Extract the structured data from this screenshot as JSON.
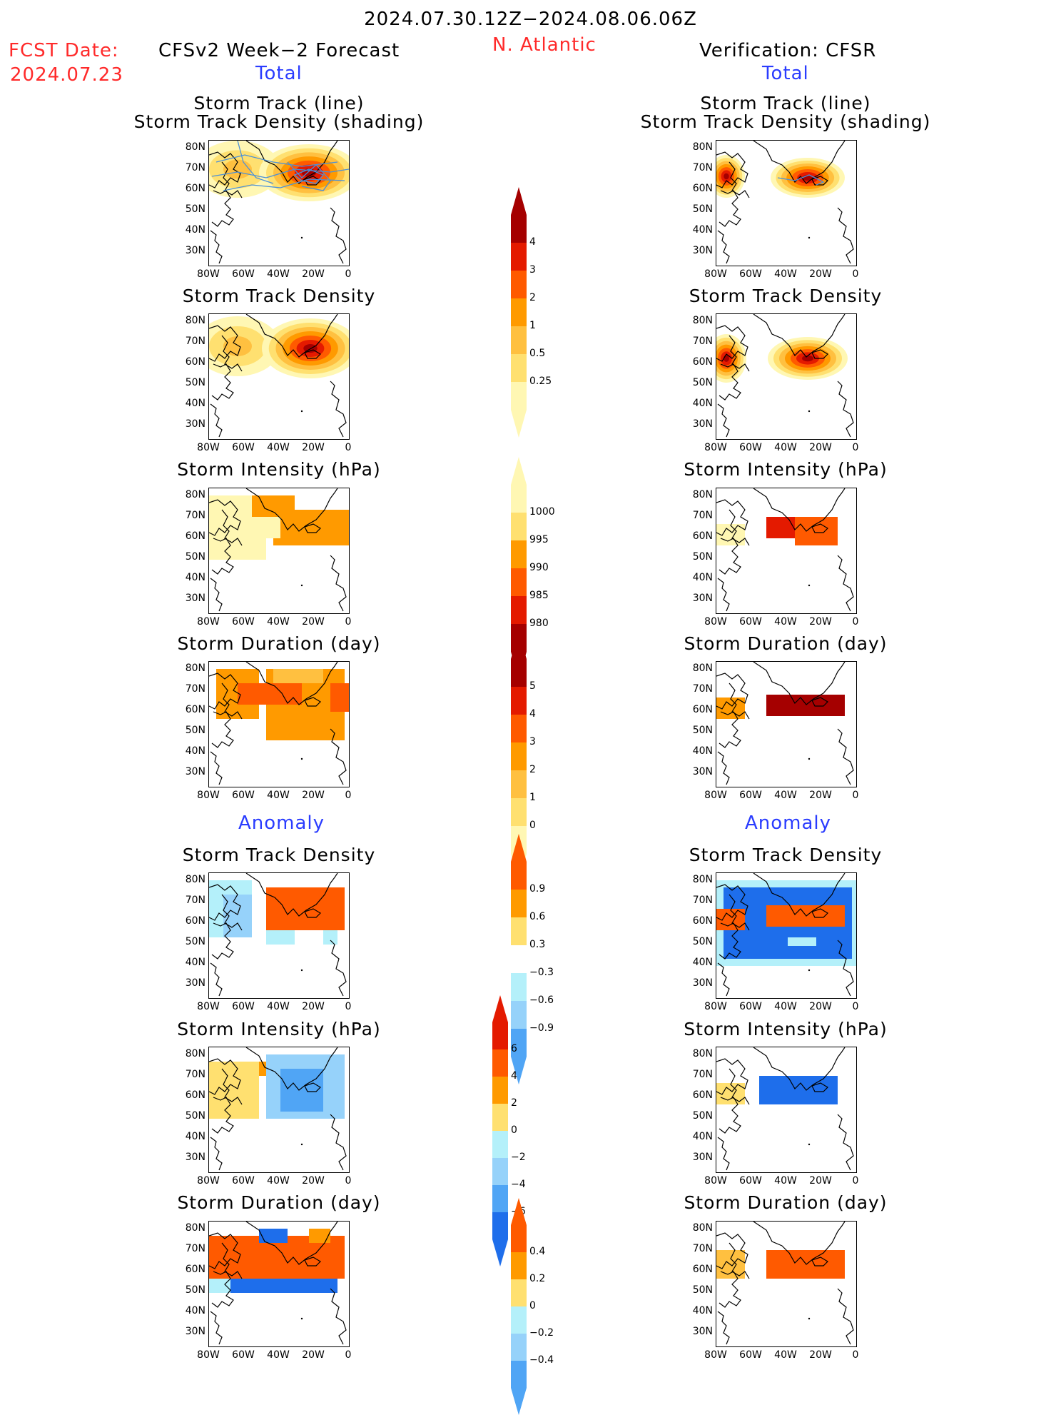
{
  "header": {
    "date_range": "2024.07.30.12Z−2024.08.06.06Z",
    "fcst_label": "FCST Date:",
    "fcst_date": "2024.07.23",
    "left_title": "CFSv2 Week−2 Forecast",
    "region": "N. Atlantic",
    "right_title": "Verification: CFSR",
    "total_label": "Total",
    "anomaly_label": "Anomaly"
  },
  "panel_titles": {
    "track_line": "Storm Track (line)",
    "track_shading": "Storm Track Density (shading)",
    "density": "Storm Track Density",
    "intensity": "Storm Intensity (hPa)",
    "duration": "Storm Duration (day)"
  },
  "axes": {
    "lat_labels": [
      "80N",
      "70N",
      "60N",
      "50N",
      "40N",
      "30N"
    ],
    "lon_labels": [
      "80W",
      "60W",
      "40W",
      "20W",
      "0"
    ]
  },
  "colorbars": {
    "density_total": [
      "4",
      "3",
      "2",
      "1",
      "0.5",
      "0.25"
    ],
    "intensity_total": [
      "1000",
      "995",
      "990",
      "985",
      "980"
    ],
    "duration_total": [
      "5",
      "4",
      "3",
      "2",
      "1",
      "0"
    ],
    "density_anom": [
      "0.9",
      "0.6",
      "0.3",
      "−0.3",
      "−0.6",
      "−0.9"
    ],
    "intensity_anom": [
      "6",
      "4",
      "2",
      "0",
      "−2",
      "−4",
      "−6"
    ],
    "duration_anom": [
      "0.4",
      "0.2",
      "0",
      "−0.2",
      "−0.4"
    ]
  },
  "colors": {
    "yellow_light": "#fff7b3",
    "yellow": "#ffe070",
    "orange_light": "#ffc040",
    "orange": "#ff9a00",
    "orange_red": "#ff5a00",
    "red": "#e41a00",
    "dark_red": "#a50000",
    "blue_light": "#b4f0fa",
    "blue": "#96d2fa",
    "blue_mid": "#50a5f5",
    "blue_dark": "#1e6eeb",
    "track_line": "#4a90d9"
  }
}
